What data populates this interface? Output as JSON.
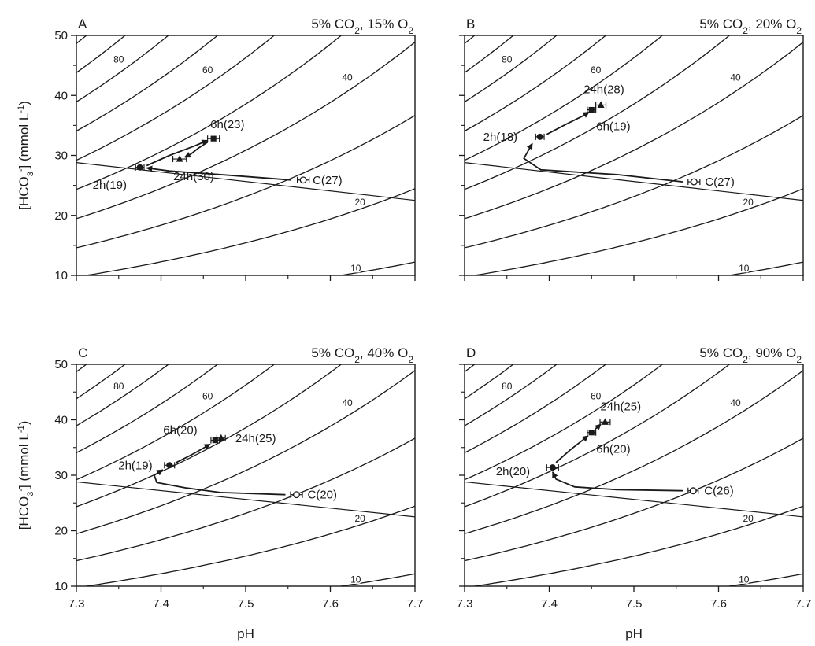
{
  "figure": {
    "shared_xlabel": "pH",
    "shared_ylabel_html": "[HCO<tspan baseline-shift='sub' font-size='11'>3</tspan><tspan baseline-shift='super' font-size='11'>-</tspan>] (mmol L<tspan baseline-shift='super' font-size='11'>-1</tspan>)"
  },
  "chart_data": [
    {
      "type": "scatter",
      "panel": "A",
      "title": "5% CO₂, 15% O₂",
      "xlabel": "",
      "ylabel": "[HCO3-] (mmol L-1)",
      "xlim": [
        7.3,
        7.7
      ],
      "ylim": [
        10,
        50
      ],
      "x_ticks": [
        "",
        "",
        "",
        "",
        ""
      ],
      "y_ticks": [
        "10",
        "20",
        "30",
        "40",
        "50"
      ],
      "isopleth_pco2": [
        10,
        20,
        30,
        40,
        50,
        60,
        70,
        80,
        90,
        100
      ],
      "isopleth_labels": [
        "10",
        "20",
        "40",
        "60",
        "80"
      ],
      "buffer_line": {
        "x": [
          7.3,
          7.7
        ],
        "y": [
          28.8,
          22.5
        ]
      },
      "points": [
        {
          "label": "C(27)",
          "x": 7.568,
          "y": 25.9,
          "xerr": 0.007,
          "marker": "open-circle"
        },
        {
          "label": "2h(19)",
          "x": 7.375,
          "y": 28.0,
          "xerr": 0.005,
          "marker": "filled-circle"
        },
        {
          "label": "6h(23)",
          "x": 7.462,
          "y": 32.8,
          "xerr": 0.007,
          "marker": "filled-square"
        },
        {
          "label": "24h(30)",
          "x": 7.422,
          "y": 29.4,
          "xerr": 0.008,
          "marker": "filled-triangle"
        }
      ]
    },
    {
      "type": "scatter",
      "panel": "B",
      "title": "5% CO₂, 20% O₂",
      "xlabel": "",
      "ylabel": "",
      "xlim": [
        7.3,
        7.7
      ],
      "ylim": [
        10,
        50
      ],
      "x_ticks": [
        "",
        "",
        "",
        "",
        ""
      ],
      "y_ticks": [
        "",
        "",
        "",
        "",
        ""
      ],
      "isopleth_pco2": [
        10,
        20,
        30,
        40,
        50,
        60,
        70,
        80,
        90,
        100
      ],
      "isopleth_labels": [
        "10",
        "20",
        "40",
        "60",
        "80"
      ],
      "buffer_line": {
        "x": [
          7.3,
          7.7
        ],
        "y": [
          28.8,
          22.5
        ]
      },
      "points": [
        {
          "label": "C(27)",
          "x": 7.571,
          "y": 25.6,
          "xerr": 0.007,
          "marker": "open-circle"
        },
        {
          "label": "2h(18)",
          "x": 7.389,
          "y": 33.1,
          "xerr": 0.005,
          "marker": "filled-circle"
        },
        {
          "label": "6h(19)",
          "x": 7.45,
          "y": 37.6,
          "xerr": 0.005,
          "marker": "filled-square"
        },
        {
          "label": "24h(28)",
          "x": 7.461,
          "y": 38.4,
          "xerr": 0.006,
          "marker": "filled-triangle"
        }
      ]
    },
    {
      "type": "scatter",
      "panel": "C",
      "title": "5% CO₂, 40% O₂",
      "xlabel": "pH",
      "ylabel": "[HCO3-] (mmol L-1)",
      "xlim": [
        7.3,
        7.7
      ],
      "ylim": [
        10,
        50
      ],
      "x_ticks": [
        "7.3",
        "7.4",
        "7.5",
        "7.6",
        "7.7"
      ],
      "y_ticks": [
        "10",
        "20",
        "30",
        "40",
        "50"
      ],
      "isopleth_pco2": [
        10,
        20,
        30,
        40,
        50,
        60,
        70,
        80,
        90,
        100
      ],
      "isopleth_labels": [
        "10",
        "20",
        "40",
        "60",
        "80"
      ],
      "buffer_line": {
        "x": [
          7.3,
          7.7
        ],
        "y": [
          28.8,
          22.5
        ]
      },
      "points": [
        {
          "label": "C(20)",
          "x": 7.56,
          "y": 26.5,
          "xerr": 0.007,
          "marker": "open-circle"
        },
        {
          "label": "2h(19)",
          "x": 7.41,
          "y": 31.8,
          "xerr": 0.006,
          "marker": "filled-circle"
        },
        {
          "label": "6h(20)",
          "x": 7.464,
          "y": 36.3,
          "xerr": 0.005,
          "marker": "filled-square"
        },
        {
          "label": "24h(25)",
          "x": 7.471,
          "y": 36.7,
          "xerr": 0.005,
          "marker": "filled-triangle"
        }
      ]
    },
    {
      "type": "scatter",
      "panel": "D",
      "title": "5% CO₂, 90% O₂",
      "xlabel": "pH",
      "ylabel": "",
      "xlim": [
        7.3,
        7.7
      ],
      "ylim": [
        10,
        50
      ],
      "x_ticks": [
        "7.3",
        "7.4",
        "7.5",
        "7.6",
        "7.7"
      ],
      "y_ticks": [
        "",
        "",
        "",
        "",
        ""
      ],
      "isopleth_pco2": [
        10,
        20,
        30,
        40,
        50,
        60,
        70,
        80,
        90,
        100
      ],
      "isopleth_labels": [
        "10",
        "20",
        "40",
        "60",
        "80"
      ],
      "buffer_line": {
        "x": [
          7.3,
          7.7
        ],
        "y": [
          28.8,
          22.5
        ]
      },
      "points": [
        {
          "label": "C(26)",
          "x": 7.57,
          "y": 27.2,
          "xerr": 0.006,
          "marker": "open-circle"
        },
        {
          "label": "2h(20)",
          "x": 7.404,
          "y": 31.4,
          "xerr": 0.007,
          "marker": "filled-circle"
        },
        {
          "label": "6h(20)",
          "x": 7.45,
          "y": 37.7,
          "xerr": 0.005,
          "marker": "filled-square"
        },
        {
          "label": "24h(25)",
          "x": 7.466,
          "y": 39.6,
          "xerr": 0.006,
          "marker": "filled-triangle"
        }
      ]
    }
  ]
}
